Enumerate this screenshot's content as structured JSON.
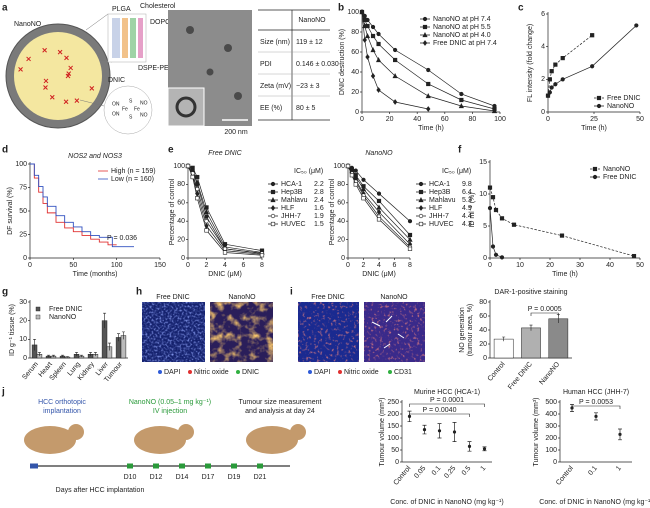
{
  "figure": {
    "panel_labels": [
      "a",
      "b",
      "c",
      "d",
      "e",
      "f",
      "g",
      "h",
      "i",
      "j"
    ],
    "a": {
      "particle": "NanoNO",
      "layers": [
        "PLGA",
        "Cholesterol",
        "DOPC",
        "DSPE-PEG"
      ],
      "core": "DNIC",
      "structure_labels": [
        "ON",
        "ON",
        "Fe",
        "Fe",
        "S",
        "S",
        "NO",
        "NO"
      ],
      "scale_bar": "200 nm"
    },
    "h": {
      "images": [
        "Free DNIC",
        "NanoNO"
      ],
      "stains": [
        "DAPI",
        "Nitric oxide",
        "DNIC"
      ]
    },
    "i": {
      "images": [
        "Free DNIC",
        "NanoNO"
      ],
      "stains": [
        "DAPI",
        "Nitric oxide",
        "CD31"
      ]
    },
    "j": {
      "implantation": [
        "HCC orthotopic",
        "implantation"
      ],
      "injection": [
        "NanoNO (0.05–1 mg kg⁻¹)",
        "IV injection"
      ],
      "measurement": [
        "Tumour size measurement",
        "and analysis at day 24"
      ],
      "timeline_label": "Days after HCC implantation",
      "days": [
        "D10",
        "D12",
        "D14",
        "D17",
        "D19",
        "D21"
      ]
    }
  },
  "table": {
    "header": "NanoNO",
    "rows": [
      [
        "Size (nm)",
        "119 ± 12"
      ],
      [
        "PDI",
        "0.146 ± 0.030"
      ],
      [
        "Zeta (mV)",
        "−23 ± 3"
      ],
      [
        "EE (%)",
        "80 ± 5"
      ]
    ]
  },
  "chart_data": [
    {
      "type": "line",
      "x_label": "Time (h)",
      "y_label": "DNIC destruction (%)",
      "xlim": [
        0,
        100
      ],
      "xticks": [
        0,
        20,
        40,
        60,
        80,
        100
      ],
      "ylim": [
        0,
        100
      ],
      "yticks": [
        0,
        20,
        40,
        60,
        80,
        100
      ],
      "legend": "upper right",
      "series": [
        {
          "name": "NanoNO at pH 7.4",
          "color": "#222222",
          "marker": "circle",
          "x": [
            0,
            2,
            4,
            8,
            12,
            24,
            48,
            72,
            96
          ],
          "values": [
            100,
            96,
            92,
            85,
            78,
            62,
            42,
            18,
            6
          ]
        },
        {
          "name": "NanoNO at pH 5.5",
          "color": "#222222",
          "marker": "square",
          "x": [
            0,
            2,
            4,
            8,
            12,
            24,
            48,
            72,
            96
          ],
          "values": [
            100,
            92,
            86,
            76,
            68,
            52,
            28,
            12,
            3
          ]
        },
        {
          "name": "NanoNO at pH 4.0",
          "color": "#222222",
          "marker": "triangle",
          "x": [
            0,
            2,
            4,
            8,
            12,
            24,
            48,
            72,
            96
          ],
          "values": [
            100,
            86,
            76,
            62,
            52,
            36,
            16,
            6,
            1
          ]
        },
        {
          "name": "Free DNIC at pH 7.4",
          "color": "#222222",
          "marker": "diamond",
          "x": [
            0,
            2,
            4,
            8,
            12,
            24,
            48
          ],
          "values": [
            100,
            72,
            55,
            36,
            22,
            10,
            3
          ]
        }
      ]
    },
    {
      "type": "line",
      "x_label": "Time (h)",
      "y_label": "FL intensity (fold change)",
      "xlim": [
        0,
        50
      ],
      "xticks": [
        0,
        25,
        50
      ],
      "ylim": [
        0,
        6
      ],
      "yticks": [
        0,
        2,
        4,
        6
      ],
      "legend": "lower right",
      "series": [
        {
          "name": "Free DNIC",
          "color": "#222222",
          "marker": "square",
          "dashed": true,
          "x": [
            0,
            1,
            2,
            4,
            8,
            24
          ],
          "values": [
            1,
            2,
            2.5,
            2.9,
            3.3,
            4.7
          ]
        },
        {
          "name": "NanoNO",
          "color": "#222222",
          "marker": "circle",
          "x": [
            0,
            1,
            2,
            4,
            8,
            24,
            48
          ],
          "values": [
            1,
            1.2,
            1.5,
            1.7,
            2,
            2.8,
            5.3
          ]
        }
      ]
    },
    {
      "type": "line",
      "step": true,
      "title": "NOS2 and NOS3",
      "x_label": "Time (months)",
      "y_label": "DF survival (%)",
      "xlim": [
        0,
        150
      ],
      "xticks": [
        0,
        50,
        100,
        150
      ],
      "ylim": [
        0,
        100
      ],
      "yticks": [
        0,
        25,
        50,
        75,
        100
      ],
      "legend": "upper right",
      "annotations": [
        "P = 0.036"
      ],
      "series": [
        {
          "name": "High (n = 159)",
          "color": "#e03030",
          "x": [
            0,
            5,
            10,
            15,
            20,
            30,
            40,
            50,
            60,
            70,
            80,
            90,
            100
          ],
          "values": [
            100,
            85,
            70,
            58,
            48,
            38,
            32,
            28,
            24,
            20,
            17,
            14,
            14
          ]
        },
        {
          "name": "Low (n = 160)",
          "color": "#3050c0",
          "x": [
            0,
            5,
            10,
            15,
            20,
            30,
            40,
            50,
            60,
            70,
            80,
            95,
            120
          ],
          "values": [
            100,
            88,
            76,
            65,
            55,
            45,
            38,
            33,
            28,
            24,
            22,
            12,
            12
          ]
        }
      ]
    },
    {
      "type": "line",
      "title": "Free DNIC",
      "x_label": "DNIC (μM)",
      "y_label": "Percentage of control",
      "xlim": [
        0,
        8
      ],
      "xticks": [
        0,
        2,
        4,
        6,
        8
      ],
      "ylim": [
        0,
        100
      ],
      "yticks": [
        0,
        20,
        40,
        60,
        80,
        100
      ],
      "legend": "outside right",
      "legend_title": "IC₅₀ (μM)",
      "series": [
        {
          "name": "HCA-1",
          "ic50": 2.2,
          "color": "#222222",
          "marker": "circle",
          "x": [
            0,
            0.5,
            1,
            2,
            4,
            8
          ],
          "values": [
            100,
            95,
            80,
            45,
            10,
            5
          ]
        },
        {
          "name": "Hep3B",
          "ic50": 2.8,
          "color": "#222222",
          "marker": "square",
          "x": [
            0,
            0.5,
            1,
            2,
            4,
            8
          ],
          "values": [
            100,
            98,
            88,
            55,
            15,
            8
          ]
        },
        {
          "name": "Mahlavu",
          "ic50": 2.4,
          "color": "#222222",
          "marker": "triangle",
          "x": [
            0,
            0.5,
            1,
            2,
            4,
            8
          ],
          "values": [
            100,
            96,
            82,
            50,
            12,
            6
          ]
        },
        {
          "name": "HLF",
          "ic50": 1.6,
          "color": "#222222",
          "marker": "diamond",
          "x": [
            0,
            0.5,
            1,
            2,
            4,
            8
          ],
          "values": [
            100,
            90,
            70,
            35,
            8,
            4
          ]
        },
        {
          "name": "JHH-7",
          "ic50": 1.9,
          "color": "#222222",
          "marker": "circle-open",
          "x": [
            0,
            0.5,
            1,
            2,
            4,
            8
          ],
          "values": [
            100,
            92,
            75,
            40,
            10,
            5
          ]
        },
        {
          "name": "HUVEC",
          "ic50": 1.5,
          "color": "#222222",
          "marker": "square-open",
          "x": [
            0,
            0.5,
            1,
            2,
            4,
            8
          ],
          "values": [
            100,
            88,
            65,
            30,
            6,
            3
          ]
        }
      ]
    },
    {
      "type": "line",
      "title": "NanoNO",
      "x_label": "DNIC (μM)",
      "y_label": "Percentage of control",
      "xlim": [
        0,
        8
      ],
      "xticks": [
        0,
        2,
        4,
        6,
        8
      ],
      "ylim": [
        0,
        100
      ],
      "yticks": [
        0,
        20,
        40,
        60,
        80,
        100
      ],
      "legend": "outside right",
      "legend_title": "IC₅₀ (μM)",
      "series": [
        {
          "name": "HCA-1",
          "ic50": 9.8,
          "color": "#222222",
          "marker": "circle",
          "x": [
            0,
            0.5,
            1,
            2,
            4,
            8
          ],
          "values": [
            100,
            98,
            95,
            85,
            70,
            40
          ]
        },
        {
          "name": "Hep3B",
          "ic50": 6.4,
          "color": "#222222",
          "marker": "square",
          "x": [
            0,
            0.5,
            1,
            2,
            4,
            8
          ],
          "values": [
            100,
            96,
            90,
            78,
            62,
            25
          ]
        },
        {
          "name": "Mahlavu",
          "ic50": 5.3,
          "color": "#222222",
          "marker": "triangle",
          "x": [
            0,
            0.5,
            1,
            2,
            4,
            8
          ],
          "values": [
            100,
            95,
            88,
            75,
            55,
            20
          ]
        },
        {
          "name": "HLF",
          "ic50": 4.9,
          "color": "#222222",
          "marker": "diamond",
          "x": [
            0,
            0.5,
            1,
            2,
            4,
            8
          ],
          "values": [
            100,
            94,
            85,
            70,
            50,
            15
          ]
        },
        {
          "name": "JHH-7",
          "ic50": 4.4,
          "color": "#222222",
          "marker": "circle-open",
          "x": [
            0,
            0.5,
            1,
            2,
            4,
            8
          ],
          "values": [
            100,
            92,
            83,
            68,
            45,
            12
          ]
        },
        {
          "name": "HUVEC",
          "ic50": 4.3,
          "color": "#222222",
          "marker": "square-open",
          "x": [
            0,
            0.5,
            1,
            2,
            4,
            8
          ],
          "values": [
            100,
            90,
            80,
            65,
            42,
            10
          ]
        }
      ]
    },
    {
      "type": "line",
      "x_label": "Time (h)",
      "y_label": "ID ml⁻¹ (%)",
      "xlim": [
        0,
        50
      ],
      "xticks": [
        0,
        10,
        20,
        30,
        40,
        50
      ],
      "ylim": [
        0,
        15
      ],
      "yticks": [
        0,
        5,
        10,
        15
      ],
      "legend": "upper right",
      "series": [
        {
          "name": "NanoNO",
          "color": "#222222",
          "marker": "square",
          "dashed": true,
          "x": [
            0,
            1,
            2,
            4,
            8,
            24,
            48
          ],
          "values": [
            11,
            9.5,
            7.5,
            6.2,
            5.2,
            3.5,
            0.3
          ]
        },
        {
          "name": "Free DNIC",
          "color": "#222222",
          "marker": "circle",
          "x": [
            0,
            1,
            2,
            4
          ],
          "values": [
            7.8,
            1.8,
            0.5,
            0.1
          ]
        }
      ]
    },
    {
      "type": "bar",
      "y_label": "ID g⁻¹ tissue (%)",
      "categories": [
        "Serum",
        "Heart",
        "Spleen",
        "Lung",
        "Kidney",
        "Liver",
        "Tumour"
      ],
      "ylim": [
        0,
        30
      ],
      "yticks": [
        0,
        10,
        20,
        30
      ],
      "legend": "upper left",
      "series": [
        {
          "name": "Free DNIC",
          "color": "#555555",
          "values": [
            7,
            1,
            1,
            2,
            2,
            20,
            11
          ],
          "errors": [
            3,
            0.5,
            0.5,
            1,
            1,
            4,
            2
          ]
        },
        {
          "name": "NanoNO",
          "color": "#bbbbbb",
          "values": [
            2,
            1,
            0.5,
            1,
            2,
            6,
            12
          ],
          "errors": [
            1,
            0.5,
            0.3,
            0.5,
            1,
            2,
            2
          ]
        }
      ]
    },
    {
      "type": "bar",
      "title": "DAR-1-positive staining",
      "y_label": [
        "NO generation",
        "(tumour area, %)"
      ],
      "categories": [
        "Control",
        "Free DNIC",
        "NanoNO"
      ],
      "values": [
        27,
        43,
        56
      ],
      "errors": [
        3,
        4,
        6
      ],
      "colors": [
        "#ffffff",
        "#b0b0b0",
        "#8a8a8a"
      ],
      "ylim": [
        0,
        80
      ],
      "yticks": [
        0,
        20,
        40,
        60,
        80
      ],
      "annotations": [
        "P = 0.0005"
      ]
    },
    {
      "type": "errorbar",
      "title": "Murine HCC (HCA-1)",
      "x_label": "Conc. of DNIC in NanoNO (mg kg⁻¹)",
      "y_label": "Tumour volume (mm³)",
      "categories": [
        "Control",
        "0.05",
        "0.1",
        "0.25",
        "0.5",
        "1"
      ],
      "values": [
        190,
        135,
        130,
        125,
        65,
        55
      ],
      "errors": [
        22,
        18,
        30,
        40,
        20,
        8
      ],
      "color": "#222222",
      "ylim": [
        0,
        250
      ],
      "yticks": [
        0,
        50,
        100,
        150,
        200,
        250
      ],
      "annotations": [
        "P = 0.0001",
        "P = 0.0040"
      ]
    },
    {
      "type": "errorbar",
      "title": "Human HCC (JHH-7)",
      "x_label": "Conc. of DNIC in NanoNO (mg kg⁻¹)",
      "y_label": "Tumour volume (mm³)",
      "categories": [
        "Control",
        "0.1",
        "1"
      ],
      "values": [
        450,
        380,
        230
      ],
      "errors": [
        30,
        30,
        45
      ],
      "color": "#222222",
      "ylim": [
        0,
        500
      ],
      "yticks": [
        0,
        100,
        200,
        300,
        400,
        500
      ],
      "annotations": [
        "P = 0.0053"
      ]
    }
  ]
}
